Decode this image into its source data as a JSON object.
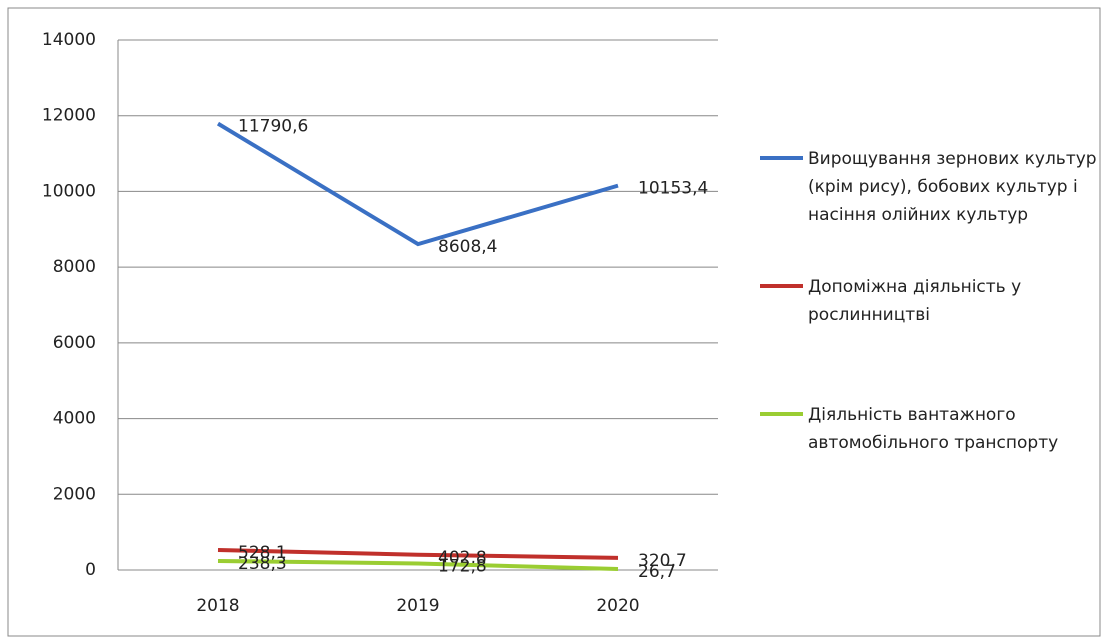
{
  "chart_data": {
    "type": "line",
    "categories": [
      "2018",
      "2019",
      "2020"
    ],
    "series": [
      {
        "name": "Вирощування зернових культур (крім рису), бобових культур і насіння олійних культур",
        "color": "#3a70c4",
        "values": [
          11790.6,
          8608.4,
          10153.4
        ],
        "value_labels": [
          "11790,6",
          "8608,4",
          "10153,4"
        ]
      },
      {
        "name": "Допоміжна діяльність у рослинництві",
        "color": "#c0302b",
        "values": [
          528.1,
          402.8,
          320.7
        ],
        "value_labels": [
          "528,1",
          "402,8",
          "320,7"
        ]
      },
      {
        "name": "Діяльність вантажного автомобільного транспорту",
        "color": "#9acd32",
        "values": [
          238.3,
          172.8,
          26.7
        ],
        "value_labels": [
          "238,3",
          "172,8",
          "26,7"
        ]
      }
    ],
    "ylim": [
      0,
      14000
    ],
    "yticks": [
      0,
      2000,
      4000,
      6000,
      8000,
      10000,
      12000,
      14000
    ],
    "grid": true
  }
}
